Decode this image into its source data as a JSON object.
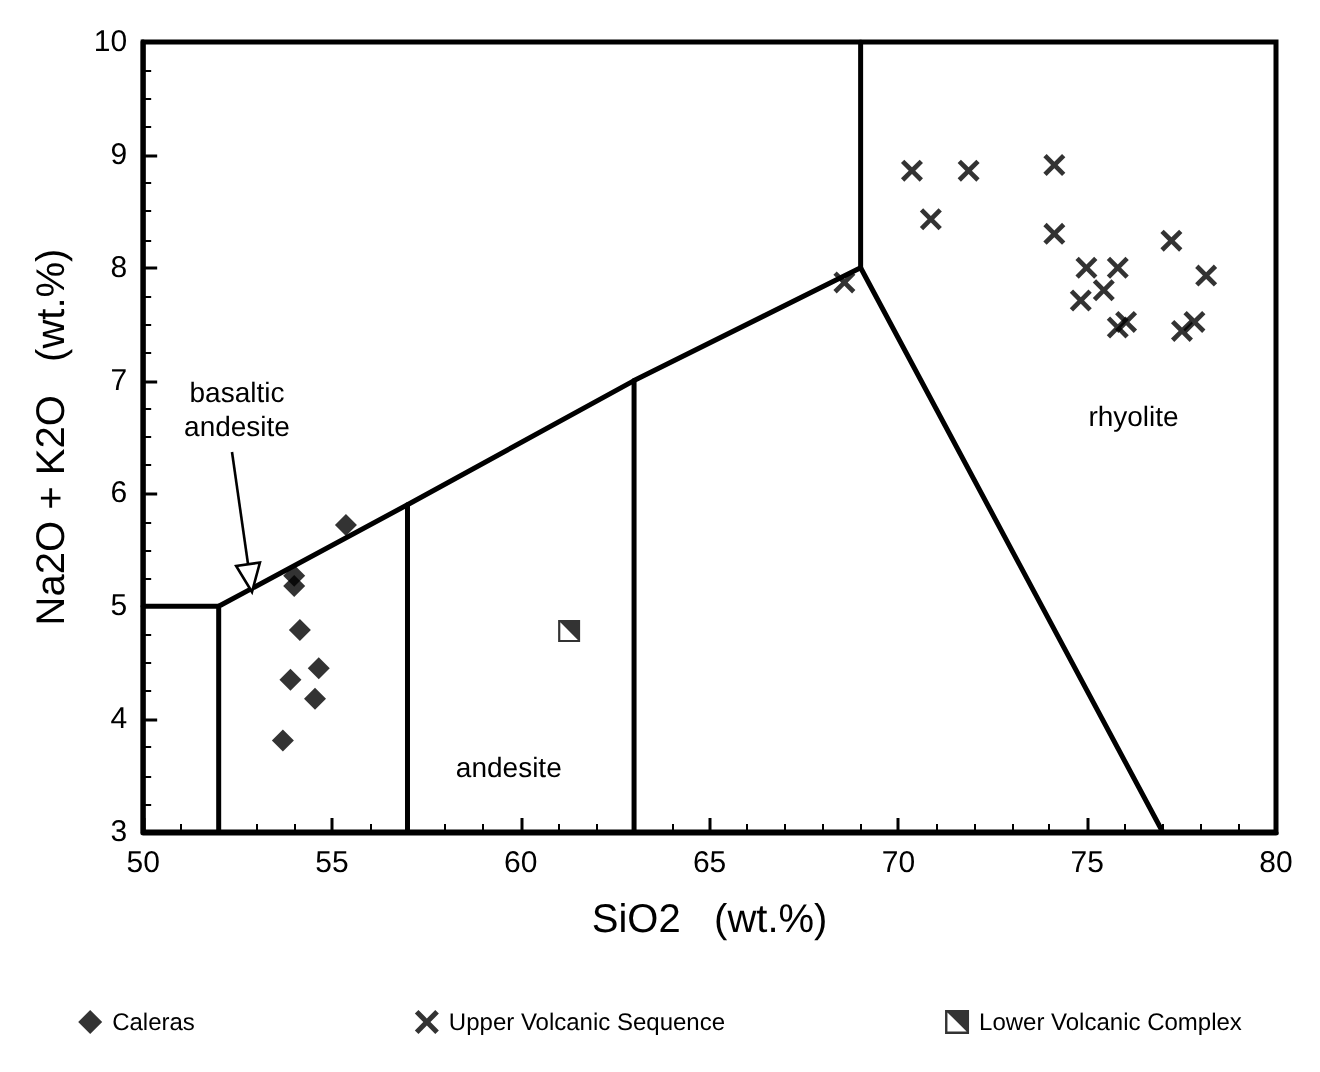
{
  "chart_data": {
    "type": "scatter",
    "xlabel": "SiO2   (wt.%)",
    "ylabel": "Na2O + K2O   (wt.%)",
    "xlim": [
      50,
      80
    ],
    "xticks": [
      50,
      55,
      60,
      65,
      70,
      75,
      80
    ],
    "ylim": [
      3,
      10
    ],
    "yticks": [
      3,
      4,
      5,
      6,
      7,
      8,
      9,
      10
    ],
    "grid": false,
    "legend": "bottom",
    "series": [
      {
        "name": "Caleras",
        "color": "#000000",
        "marker": "diamond",
        "x": [
          55.37,
          54.0,
          54.0,
          54.15,
          53.9,
          54.65,
          54.55,
          53.7
        ],
        "values": [
          5.72,
          5.27,
          5.18,
          4.79,
          4.35,
          4.45,
          4.18,
          3.81
        ]
      },
      {
        "name": "Upper Volcanic Sequence",
        "color": "#000000",
        "marker": "cross",
        "x": [
          70.36,
          70.86,
          71.86,
          74.13,
          74.13,
          68.57,
          74.98,
          74.83,
          75.44,
          75.81,
          75.81,
          76.03,
          77.23,
          78.15,
          77.51,
          77.84
        ],
        "values": [
          8.86,
          8.43,
          8.86,
          8.91,
          8.3,
          7.87,
          8.0,
          7.71,
          7.8,
          8.0,
          7.47,
          7.52,
          8.24,
          7.93,
          7.44,
          7.52
        ]
      },
      {
        "name": "Lower Volcanic Complex",
        "color": "#000000",
        "marker": "square",
        "x": [
          61.28
        ],
        "values": [
          4.78
        ]
      },
      {
        "type": "line",
        "color": "#000000",
        "marker": "none",
        "line_style": "solid",
        "x": [
          50,
          52
        ],
        "values": [
          5,
          5
        ]
      },
      {
        "type": "line",
        "color": "#000000",
        "marker": "none",
        "line_style": "solid",
        "x": [
          52,
          52,
          57,
          63,
          69,
          69
        ],
        "values": [
          3,
          5,
          5.9,
          7,
          8,
          10
        ]
      },
      {
        "type": "line",
        "color": "#000000",
        "marker": "none",
        "line_style": "solid",
        "x": [
          57,
          57
        ],
        "values": [
          3,
          5.9
        ]
      },
      {
        "type": "line",
        "color": "#000000",
        "marker": "none",
        "line_style": "solid",
        "x": [
          63,
          63
        ],
        "values": [
          3,
          7
        ]
      },
      {
        "type": "line",
        "color": "#000000",
        "marker": "none",
        "line_style": "solid",
        "x": [
          69,
          77
        ],
        "values": [
          8,
          3
        ]
      }
    ],
    "annotations": [
      "basaltic\nandesite",
      "andesite",
      "rhyolite"
    ]
  }
}
